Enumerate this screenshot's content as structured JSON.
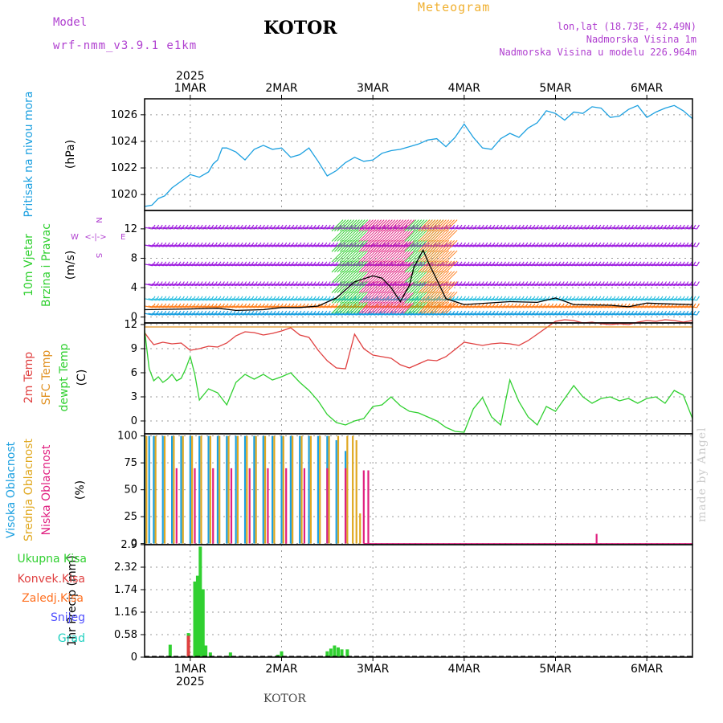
{
  "header": {
    "model_label": "Model",
    "model_name": "wrf-nmm_v3.9.1 e1km",
    "station": "KOTOR",
    "meteogram_label": "Meteogram",
    "lonlat": "lon,lat (18.73E, 42.49N)",
    "elevation": "Nadmorska Visina 1m",
    "model_elevation": "Nadmorska Visina u modelu 226.964m"
  },
  "footer": {
    "station": "KOTOR",
    "signature": "made by Angel"
  },
  "colors": {
    "pressure": "#1ca0e0",
    "temp2m": "#e04040",
    "sfc_temp": "#e09020",
    "dewpoint": "#30d030",
    "high_cloud": "#1ca0e0",
    "mid_cloud": "#e0a820",
    "low_cloud": "#e02080",
    "total_precip": "#30d030",
    "conv_precip": "#e04040",
    "frozen_precip": "#ff7020",
    "snow": "#5050ff",
    "hail": "#20d0c0",
    "wind_label": "#30d030",
    "wind_compass": "#b040d0"
  },
  "chart_data": [
    {
      "type": "line",
      "panel": "pressure",
      "ylabel_lines": [
        "Pritisak na nivou mora",
        "(hPa)"
      ],
      "yticks": [
        1020,
        1022,
        1024,
        1026
      ],
      "ylim": [
        1018.8,
        1027.2
      ],
      "xlim": [
        -0.5,
        5.5
      ],
      "day_labels": [
        "1MAR",
        "2MAR",
        "3MAR",
        "4MAR",
        "5MAR",
        "6MAR"
      ],
      "day_positions": [
        0,
        1,
        2,
        3,
        4,
        5
      ],
      "year_label": "2025",
      "grid": true,
      "x": [
        -0.5,
        -0.42,
        -0.35,
        -0.28,
        -0.2,
        -0.1,
        0.0,
        0.1,
        0.2,
        0.25,
        0.3,
        0.35,
        0.4,
        0.5,
        0.6,
        0.65,
        0.7,
        0.8,
        0.9,
        1.0,
        1.1,
        1.2,
        1.3,
        1.4,
        1.5,
        1.6,
        1.7,
        1.8,
        1.9,
        2.0,
        2.1,
        2.2,
        2.3,
        2.4,
        2.5,
        2.6,
        2.7,
        2.8,
        2.9,
        3.0,
        3.1,
        3.2,
        3.3,
        3.4,
        3.5,
        3.6,
        3.7,
        3.8,
        3.9,
        4.0,
        4.1,
        4.2,
        4.3,
        4.4,
        4.5,
        4.6,
        4.7,
        4.8,
        4.9,
        5.0,
        5.1,
        5.2,
        5.3,
        5.4,
        5.5
      ],
      "y": [
        1019.1,
        1019.2,
        1019.7,
        1019.9,
        1020.5,
        1021.0,
        1021.5,
        1021.3,
        1021.7,
        1022.3,
        1022.6,
        1023.5,
        1023.5,
        1023.2,
        1022.6,
        1023.0,
        1023.4,
        1023.7,
        1023.4,
        1023.5,
        1022.8,
        1023.0,
        1023.5,
        1022.5,
        1021.4,
        1021.8,
        1022.4,
        1022.8,
        1022.5,
        1022.6,
        1023.1,
        1023.3,
        1023.4,
        1023.6,
        1023.8,
        1024.1,
        1024.2,
        1023.6,
        1024.3,
        1025.3,
        1024.3,
        1023.5,
        1023.4,
        1024.2,
        1024.6,
        1024.3,
        1025.0,
        1025.4,
        1026.3,
        1026.1,
        1025.6,
        1026.2,
        1026.1,
        1026.6,
        1026.5,
        1025.8,
        1025.9,
        1026.4,
        1026.7,
        1025.8,
        1026.2,
        1026.5,
        1026.7,
        1026.3,
        1025.7
      ],
      "series": [
        {
          "name": "Pritisak na nivou mora"
        }
      ]
    },
    {
      "type": "line",
      "panel": "wind",
      "ylabel_lines": [
        "10m Vjetar",
        "Brzina i Pravac",
        "(m/s)"
      ],
      "compass": {
        "north": "N",
        "south": "S",
        "east": "E",
        "west": "W",
        "arrow": "<-|->"
      },
      "yticks": [
        0,
        4,
        8,
        12
      ],
      "ylim": [
        -0.8,
        14.5
      ],
      "barb_levels": [
        0.5,
        1.5,
        2.5,
        4.5,
        7.2,
        9.8,
        12.2
      ],
      "x": [
        -0.5,
        0.0,
        0.3,
        0.5,
        0.8,
        1.0,
        1.2,
        1.4,
        1.6,
        1.8,
        2.0,
        2.1,
        2.2,
        2.3,
        2.4,
        2.45,
        2.55,
        2.62,
        2.7,
        2.8,
        3.0,
        3.5,
        3.8,
        4.0,
        4.2,
        4.6,
        4.8,
        5.0,
        5.2,
        5.5
      ],
      "y": [
        1.0,
        1.1,
        1.2,
        0.9,
        1.0,
        1.3,
        1.3,
        1.5,
        2.6,
        4.8,
        5.6,
        5.3,
        4.0,
        2.1,
        4.3,
        6.8,
        9.1,
        7.1,
        5.1,
        2.5,
        1.7,
        2.1,
        2.0,
        2.6,
        1.7,
        1.6,
        1.4,
        1.9,
        1.8,
        1.7
      ],
      "series": [
        {
          "name": "Brzina"
        }
      ]
    },
    {
      "type": "line",
      "panel": "temperature",
      "ylabel_lines": [
        "2m Temp",
        "SFC Temp",
        "dewpt Temp",
        "(C)"
      ],
      "yticks": [
        0,
        3,
        6,
        9,
        12
      ],
      "ylim": [
        -1.6,
        12.2
      ],
      "grid": true,
      "series": [
        {
          "name": "2m Temp",
          "x": [
            -0.5,
            -0.45,
            -0.4,
            -0.3,
            -0.2,
            -0.1,
            0.0,
            0.1,
            0.2,
            0.3,
            0.4,
            0.5,
            0.6,
            0.7,
            0.8,
            0.9,
            1.0,
            1.1,
            1.2,
            1.3,
            1.4,
            1.5,
            1.6,
            1.7,
            1.8,
            1.9,
            2.0,
            2.1,
            2.2,
            2.3,
            2.4,
            2.5,
            2.6,
            2.7,
            2.8,
            2.9,
            3.0,
            3.1,
            3.2,
            3.3,
            3.4,
            3.5,
            3.6,
            3.7,
            3.8,
            3.9,
            4.0,
            4.1,
            4.2,
            4.3,
            4.4,
            4.5,
            4.6,
            4.7,
            4.8,
            4.9,
            5.0,
            5.1,
            5.2,
            5.3,
            5.4,
            5.5
          ],
          "y": [
            11.0,
            10.2,
            9.5,
            9.8,
            9.6,
            9.7,
            8.8,
            9.0,
            9.3,
            9.2,
            9.7,
            10.6,
            11.1,
            11.0,
            10.7,
            10.9,
            11.2,
            11.6,
            10.7,
            10.4,
            8.8,
            7.5,
            6.6,
            6.5,
            10.8,
            9.0,
            8.2,
            8.0,
            7.8,
            7.0,
            6.6,
            7.1,
            7.6,
            7.5,
            8.0,
            8.9,
            9.8,
            9.6,
            9.4,
            9.6,
            9.7,
            9.6,
            9.4,
            10.0,
            10.8,
            11.6,
            12.4,
            12.6,
            12.5,
            12.2,
            12.3,
            12.1,
            12.0,
            12.1,
            12.0,
            12.3,
            12.5,
            12.4,
            12.6,
            12.5,
            12.3,
            12.5
          ]
        },
        {
          "name": "SFC Temp",
          "x": [
            -0.5,
            5.5
          ],
          "y": [
            11.7,
            11.7
          ]
        },
        {
          "name": "dewpt Temp",
          "x": [
            -0.5,
            -0.45,
            -0.4,
            -0.35,
            -0.3,
            -0.25,
            -0.2,
            -0.15,
            -0.1,
            -0.05,
            0.0,
            0.05,
            0.1,
            0.2,
            0.3,
            0.4,
            0.5,
            0.6,
            0.7,
            0.8,
            0.9,
            1.0,
            1.1,
            1.2,
            1.3,
            1.4,
            1.5,
            1.6,
            1.7,
            1.8,
            1.9,
            2.0,
            2.1,
            2.2,
            2.3,
            2.4,
            2.5,
            2.6,
            2.7,
            2.8,
            2.9,
            3.0,
            3.1,
            3.2,
            3.3,
            3.4,
            3.5,
            3.6,
            3.7,
            3.8,
            3.9,
            4.0,
            4.1,
            4.2,
            4.3,
            4.4,
            4.5,
            4.6,
            4.7,
            4.8,
            4.9,
            5.0,
            5.1,
            5.2,
            5.3,
            5.4,
            5.5
          ],
          "y": [
            11.3,
            6.5,
            5.0,
            5.5,
            4.8,
            5.2,
            5.8,
            5.0,
            5.3,
            6.5,
            8.0,
            5.8,
            2.6,
            4.0,
            3.5,
            2.0,
            4.8,
            5.8,
            5.2,
            5.8,
            5.1,
            5.5,
            6.0,
            4.8,
            3.8,
            2.5,
            0.8,
            -0.2,
            -0.5,
            0.0,
            0.3,
            1.8,
            2.0,
            3.0,
            1.9,
            1.2,
            1.0,
            0.5,
            0.0,
            -0.8,
            -1.3,
            -1.4,
            1.5,
            2.9,
            0.5,
            -0.5,
            5.1,
            2.4,
            0.5,
            -0.5,
            1.8,
            1.2,
            2.8,
            4.4,
            3.0,
            2.2,
            2.8,
            3.0,
            2.5,
            2.8,
            2.2,
            2.8,
            3.0,
            2.2,
            3.8,
            3.2,
            0.3
          ]
        }
      ]
    },
    {
      "type": "bar",
      "panel": "cloudiness",
      "ylabel_lines": [
        "Visoka Oblacnost",
        "Srednja Oblacnost",
        "Niska Oblacnost",
        "(%)"
      ],
      "yticks": [
        0,
        25,
        50,
        75,
        100
      ],
      "ylim": [
        -1,
        102
      ],
      "grid": true,
      "series": [
        {
          "name": "Visoka Oblacnost",
          "x": [
            -0.5,
            -0.45,
            -0.4,
            -0.3,
            -0.2,
            -0.1,
            0.0,
            0.1,
            0.2,
            0.3,
            0.4,
            0.5,
            0.6,
            0.7,
            0.8,
            0.9,
            1.0,
            1.1,
            1.2,
            1.3,
            1.4,
            1.5,
            1.6,
            1.7
          ],
          "values": [
            100,
            100,
            100,
            100,
            100,
            100,
            100,
            100,
            100,
            100,
            100,
            100,
            100,
            100,
            100,
            100,
            100,
            100,
            100,
            100,
            100,
            100,
            96,
            86
          ]
        },
        {
          "name": "Srednja Oblacnost",
          "x": [
            -0.48,
            -0.38,
            -0.28,
            -0.18,
            -0.08,
            0.02,
            0.12,
            0.22,
            0.32,
            0.42,
            0.52,
            0.62,
            0.72,
            0.82,
            0.92,
            1.02,
            1.12,
            1.22,
            1.32,
            1.42,
            1.52,
            1.62,
            1.72,
            1.78,
            1.82,
            1.86
          ],
          "values": [
            100,
            100,
            100,
            100,
            100,
            100,
            100,
            100,
            100,
            100,
            100,
            100,
            100,
            100,
            100,
            100,
            100,
            100,
            100,
            100,
            100,
            100,
            100,
            100,
            96,
            28
          ]
        },
        {
          "name": "Niska Oblacnost",
          "x": [
            -0.15,
            0.05,
            0.25,
            0.45,
            0.65,
            0.85,
            1.05,
            1.25,
            1.5,
            1.7,
            1.9,
            1.95,
            4.45
          ],
          "values": [
            70,
            70,
            70,
            70,
            70,
            70,
            70,
            70,
            70,
            70,
            68,
            68,
            9
          ]
        }
      ]
    },
    {
      "type": "bar",
      "panel": "precipitation",
      "ylabel_lines": [
        "1hr Precip",
        "(mm)"
      ],
      "legend": [
        "Ukupna Kisa",
        "Konvek.Kisa",
        "Zaledj.Kisa",
        "Snijeg",
        "Grad"
      ],
      "yticks": [
        0,
        0.58,
        1.16,
        1.74,
        2.32,
        2.9
      ],
      "ylim": [
        0,
        2.9
      ],
      "grid": true,
      "day_labels_bottom": [
        "1MAR",
        "2MAR",
        "3MAR",
        "4MAR",
        "5MAR",
        "6MAR"
      ],
      "year_label_bottom": "2025",
      "series": [
        {
          "name": "Ukupna Kisa",
          "x": [
            -0.22,
            -0.02,
            0.05,
            0.08,
            0.11,
            0.14,
            0.17,
            0.22,
            0.44,
            0.96,
            1.0,
            1.5,
            1.54,
            1.58,
            1.62,
            1.66,
            1.72
          ],
          "values": [
            0.32,
            0.62,
            1.95,
            2.1,
            2.85,
            1.75,
            0.3,
            0.12,
            0.12,
            0.06,
            0.15,
            0.15,
            0.22,
            0.3,
            0.25,
            0.2,
            0.2
          ]
        },
        {
          "name": "Konvek.Kisa",
          "x": [
            -0.02
          ],
          "values": [
            0.55
          ]
        }
      ]
    }
  ]
}
